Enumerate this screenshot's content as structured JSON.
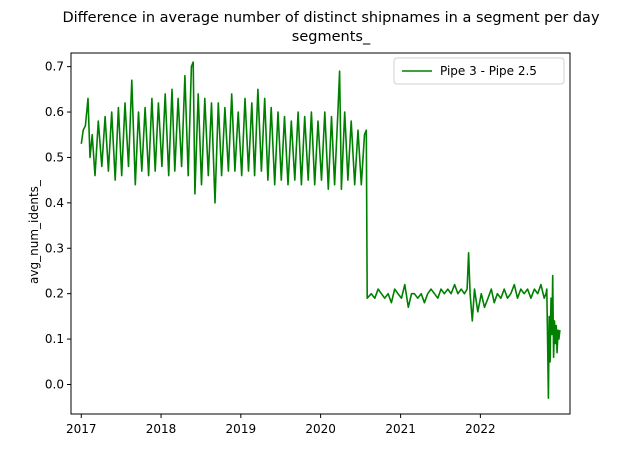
{
  "chart_data": {
    "type": "line",
    "title": "Difference in average number of distinct shipnames in a segment per day",
    "subtitle": "segments_",
    "xlabel": "",
    "ylabel": "avg_num_idents_",
    "x_ticks": [
      "2017",
      "2018",
      "2019",
      "2020",
      "2021",
      "2022"
    ],
    "y_ticks": [
      "0.0",
      "0.1",
      "0.2",
      "0.3",
      "0.4",
      "0.5",
      "0.6",
      "0.7"
    ],
    "xlim": [
      "2016-11-15",
      "2023-02-15"
    ],
    "ylim": [
      -0.065,
      0.73
    ],
    "grid": false,
    "legend_position": "top-right",
    "series": [
      {
        "name": "Pipe 3 - Pipe 2.5",
        "color": "#008000",
        "points": [
          [
            "2017-01-01",
            0.53
          ],
          [
            "2017-01-10",
            0.56
          ],
          [
            "2017-01-20",
            0.57
          ],
          [
            "2017-02-01",
            0.63
          ],
          [
            "2017-02-10",
            0.5
          ],
          [
            "2017-02-20",
            0.55
          ],
          [
            "2017-03-05",
            0.46
          ],
          [
            "2017-03-20",
            0.58
          ],
          [
            "2017-04-05",
            0.48
          ],
          [
            "2017-04-20",
            0.59
          ],
          [
            "2017-05-05",
            0.47
          ],
          [
            "2017-05-20",
            0.6
          ],
          [
            "2017-06-05",
            0.45
          ],
          [
            "2017-06-20",
            0.61
          ],
          [
            "2017-07-05",
            0.46
          ],
          [
            "2017-07-20",
            0.62
          ],
          [
            "2017-08-05",
            0.48
          ],
          [
            "2017-08-20",
            0.67
          ],
          [
            "2017-09-05",
            0.44
          ],
          [
            "2017-09-20",
            0.6
          ],
          [
            "2017-10-05",
            0.47
          ],
          [
            "2017-10-20",
            0.61
          ],
          [
            "2017-11-05",
            0.46
          ],
          [
            "2017-11-20",
            0.63
          ],
          [
            "2017-12-05",
            0.47
          ],
          [
            "2017-12-20",
            0.62
          ],
          [
            "2018-01-05",
            0.48
          ],
          [
            "2018-01-20",
            0.64
          ],
          [
            "2018-02-05",
            0.46
          ],
          [
            "2018-02-20",
            0.65
          ],
          [
            "2018-03-05",
            0.47
          ],
          [
            "2018-03-20",
            0.63
          ],
          [
            "2018-04-05",
            0.48
          ],
          [
            "2018-04-20",
            0.68
          ],
          [
            "2018-05-05",
            0.46
          ],
          [
            "2018-05-20",
            0.7
          ],
          [
            "2018-05-28",
            0.71
          ],
          [
            "2018-06-05",
            0.42
          ],
          [
            "2018-06-20",
            0.64
          ],
          [
            "2018-07-05",
            0.44
          ],
          [
            "2018-07-20",
            0.63
          ],
          [
            "2018-08-05",
            0.46
          ],
          [
            "2018-08-20",
            0.62
          ],
          [
            "2018-09-05",
            0.4
          ],
          [
            "2018-09-20",
            0.62
          ],
          [
            "2018-10-05",
            0.46
          ],
          [
            "2018-10-20",
            0.61
          ],
          [
            "2018-11-05",
            0.47
          ],
          [
            "2018-11-20",
            0.64
          ],
          [
            "2018-12-05",
            0.47
          ],
          [
            "2018-12-20",
            0.6
          ],
          [
            "2019-01-05",
            0.46
          ],
          [
            "2019-01-20",
            0.63
          ],
          [
            "2019-02-05",
            0.47
          ],
          [
            "2019-02-20",
            0.62
          ],
          [
            "2019-03-05",
            0.46
          ],
          [
            "2019-03-20",
            0.65
          ],
          [
            "2019-04-05",
            0.47
          ],
          [
            "2019-04-20",
            0.63
          ],
          [
            "2019-05-05",
            0.45
          ],
          [
            "2019-05-20",
            0.61
          ],
          [
            "2019-06-05",
            0.44
          ],
          [
            "2019-06-20",
            0.6
          ],
          [
            "2019-07-05",
            0.45
          ],
          [
            "2019-07-20",
            0.59
          ],
          [
            "2019-08-05",
            0.44
          ],
          [
            "2019-08-20",
            0.58
          ],
          [
            "2019-09-05",
            0.45
          ],
          [
            "2019-09-20",
            0.6
          ],
          [
            "2019-10-05",
            0.44
          ],
          [
            "2019-10-20",
            0.59
          ],
          [
            "2019-11-05",
            0.45
          ],
          [
            "2019-11-20",
            0.6
          ],
          [
            "2019-12-05",
            0.44
          ],
          [
            "2019-12-20",
            0.58
          ],
          [
            "2020-01-05",
            0.45
          ],
          [
            "2020-01-20",
            0.6
          ],
          [
            "2020-02-05",
            0.43
          ],
          [
            "2020-02-20",
            0.59
          ],
          [
            "2020-03-05",
            0.44
          ],
          [
            "2020-03-20",
            0.6
          ],
          [
            "2020-03-28",
            0.69
          ],
          [
            "2020-04-05",
            0.43
          ],
          [
            "2020-04-20",
            0.6
          ],
          [
            "2020-05-05",
            0.45
          ],
          [
            "2020-05-20",
            0.58
          ],
          [
            "2020-06-05",
            0.44
          ],
          [
            "2020-06-20",
            0.56
          ],
          [
            "2020-07-05",
            0.44
          ],
          [
            "2020-07-20",
            0.55
          ],
          [
            "2020-07-28",
            0.56
          ],
          [
            "2020-08-01",
            0.19
          ],
          [
            "2020-08-20",
            0.2
          ],
          [
            "2020-09-05",
            0.19
          ],
          [
            "2020-09-20",
            0.21
          ],
          [
            "2020-10-05",
            0.2
          ],
          [
            "2020-10-20",
            0.19
          ],
          [
            "2020-11-05",
            0.2
          ],
          [
            "2020-11-20",
            0.18
          ],
          [
            "2020-12-05",
            0.21
          ],
          [
            "2020-12-20",
            0.2
          ],
          [
            "2021-01-05",
            0.19
          ],
          [
            "2021-01-20",
            0.22
          ],
          [
            "2021-02-05",
            0.17
          ],
          [
            "2021-02-20",
            0.2
          ],
          [
            "2021-03-05",
            0.2
          ],
          [
            "2021-03-20",
            0.19
          ],
          [
            "2021-04-05",
            0.2
          ],
          [
            "2021-04-20",
            0.18
          ],
          [
            "2021-05-05",
            0.2
          ],
          [
            "2021-05-20",
            0.21
          ],
          [
            "2021-06-05",
            0.2
          ],
          [
            "2021-06-20",
            0.19
          ],
          [
            "2021-07-05",
            0.21
          ],
          [
            "2021-07-20",
            0.2
          ],
          [
            "2021-08-05",
            0.21
          ],
          [
            "2021-08-20",
            0.2
          ],
          [
            "2021-09-05",
            0.22
          ],
          [
            "2021-09-20",
            0.2
          ],
          [
            "2021-10-05",
            0.21
          ],
          [
            "2021-10-20",
            0.2
          ],
          [
            "2021-11-01",
            0.21
          ],
          [
            "2021-11-08",
            0.29
          ],
          [
            "2021-11-15",
            0.2
          ],
          [
            "2021-11-25",
            0.14
          ],
          [
            "2021-12-05",
            0.21
          ],
          [
            "2021-12-20",
            0.16
          ],
          [
            "2022-01-05",
            0.2
          ],
          [
            "2022-01-20",
            0.17
          ],
          [
            "2022-02-05",
            0.19
          ],
          [
            "2022-02-20",
            0.21
          ],
          [
            "2022-03-05",
            0.18
          ],
          [
            "2022-03-20",
            0.2
          ],
          [
            "2022-04-05",
            0.19
          ],
          [
            "2022-04-20",
            0.21
          ],
          [
            "2022-05-05",
            0.19
          ],
          [
            "2022-05-20",
            0.2
          ],
          [
            "2022-06-05",
            0.22
          ],
          [
            "2022-06-20",
            0.19
          ],
          [
            "2022-07-05",
            0.21
          ],
          [
            "2022-07-20",
            0.2
          ],
          [
            "2022-08-05",
            0.21
          ],
          [
            "2022-08-20",
            0.19
          ],
          [
            "2022-09-05",
            0.21
          ],
          [
            "2022-09-20",
            0.2
          ],
          [
            "2022-10-05",
            0.22
          ],
          [
            "2022-10-20",
            0.19
          ],
          [
            "2022-10-28",
            0.2
          ],
          [
            "2022-11-01",
            0.21
          ],
          [
            "2022-11-05",
            0.08
          ],
          [
            "2022-11-08",
            -0.03
          ],
          [
            "2022-11-12",
            0.15
          ],
          [
            "2022-11-16",
            0.05
          ],
          [
            "2022-11-20",
            0.19
          ],
          [
            "2022-11-24",
            0.11
          ],
          [
            "2022-11-28",
            0.24
          ],
          [
            "2022-12-02",
            0.06
          ],
          [
            "2022-12-06",
            0.14
          ],
          [
            "2022-12-10",
            0.09
          ],
          [
            "2022-12-14",
            0.13
          ],
          [
            "2022-12-18",
            0.07
          ],
          [
            "2022-12-22",
            0.12
          ],
          [
            "2022-12-26",
            0.1
          ],
          [
            "2022-12-31",
            0.12
          ]
        ]
      }
    ]
  }
}
